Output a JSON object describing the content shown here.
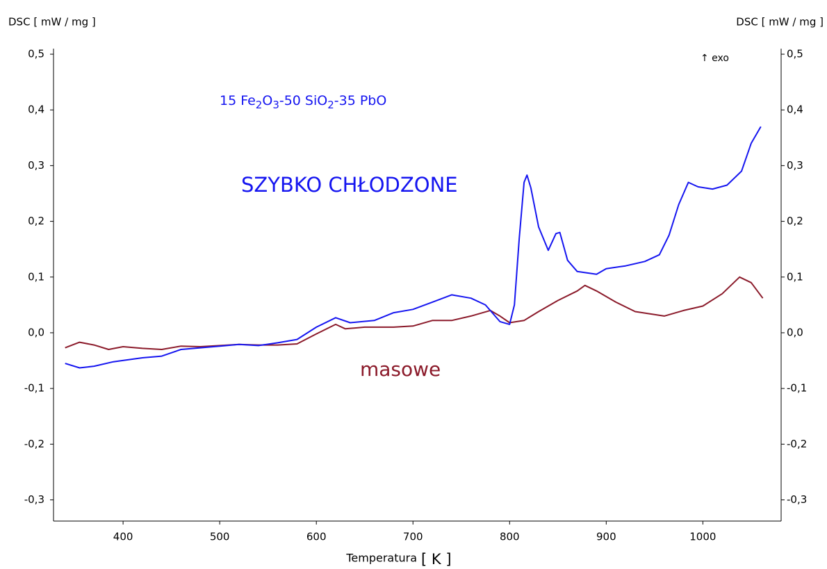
{
  "chart_data": {
    "type": "line",
    "ylabel": "DSC [ mW / mg ]",
    "y2label": "DSC [ mW / mg ]",
    "annotation": "↑ exo",
    "formula": [
      "15 Fe",
      "2",
      "O",
      "3",
      "-50 SiO",
      "2",
      "-35 PbO"
    ],
    "xlabel": [
      "Temperatura",
      "[ K ]"
    ],
    "xlim": [
      328,
      1081
    ],
    "xticks": [
      400,
      500,
      600,
      700,
      800,
      900,
      1000
    ],
    "ylim": [
      -0.338,
      0.51
    ],
    "yticks": [
      {
        "value": 0.5,
        "label": "0,5"
      },
      {
        "value": 0.4,
        "label": "0,4"
      },
      {
        "value": 0.3,
        "label": "0,3"
      },
      {
        "value": 0.2,
        "label": "0,2"
      },
      {
        "value": 0.1,
        "label": "0,1"
      },
      {
        "value": 0,
        "label": "0,0"
      },
      {
        "value": -0.1,
        "label": "-0,1"
      },
      {
        "value": -0.2,
        "label": "-0,2"
      },
      {
        "value": -0.3,
        "label": "-0,3"
      }
    ],
    "y2lim": [
      -0.338,
      0.51
    ],
    "y2ticks": [
      {
        "value": 0.5,
        "label": "0,5"
      },
      {
        "value": 0.4,
        "label": "0,4"
      },
      {
        "value": 0.3,
        "label": "0,3"
      },
      {
        "value": 0.2,
        "label": "0,2"
      },
      {
        "value": 0.1,
        "label": "0,1"
      },
      {
        "value": 0,
        "label": "0,0"
      },
      {
        "value": -0.1,
        "label": "-0,1"
      },
      {
        "value": -0.2,
        "label": "-0,2"
      },
      {
        "value": -0.3,
        "label": "-0,3"
      }
    ],
    "series": [
      {
        "name": "SZYBKO CHŁODZONE",
        "color": "#1515f0",
        "x": [
          340,
          355,
          370,
          390,
          420,
          440,
          460,
          480,
          500,
          520,
          540,
          560,
          580,
          600,
          620,
          635,
          660,
          680,
          700,
          720,
          740,
          760,
          775,
          790,
          800,
          805,
          810,
          815,
          818,
          822,
          830,
          840,
          848,
          852,
          860,
          870,
          890,
          900,
          920,
          940,
          955,
          965,
          975,
          985,
          995,
          1010,
          1025,
          1040,
          1050,
          1060
        ],
        "values": [
          -0.055,
          -0.063,
          -0.06,
          -0.052,
          -0.045,
          -0.042,
          -0.03,
          -0.027,
          -0.024,
          -0.021,
          -0.023,
          -0.018,
          -0.012,
          0.01,
          0.027,
          0.018,
          0.022,
          0.036,
          0.042,
          0.055,
          0.068,
          0.062,
          0.05,
          0.02,
          0.015,
          0.05,
          0.17,
          0.27,
          0.283,
          0.26,
          0.19,
          0.148,
          0.178,
          0.18,
          0.13,
          0.11,
          0.105,
          0.115,
          0.12,
          0.128,
          0.14,
          0.175,
          0.23,
          0.27,
          0.262,
          0.258,
          0.265,
          0.29,
          0.34,
          0.37
        ]
      },
      {
        "name": "masowe",
        "color": "#8b1a2a",
        "x": [
          340,
          355,
          370,
          385,
          400,
          420,
          440,
          460,
          480,
          500,
          520,
          540,
          560,
          580,
          600,
          620,
          630,
          650,
          680,
          700,
          720,
          740,
          760,
          780,
          790,
          800,
          815,
          830,
          850,
          870,
          878,
          890,
          910,
          930,
          960,
          980,
          1000,
          1020,
          1038,
          1050,
          1062
        ],
        "values": [
          -0.027,
          -0.017,
          -0.022,
          -0.03,
          -0.025,
          -0.028,
          -0.03,
          -0.024,
          -0.025,
          -0.023,
          -0.021,
          -0.022,
          -0.022,
          -0.02,
          -0.002,
          0.015,
          0.007,
          0.01,
          0.01,
          0.012,
          0.022,
          0.022,
          0.03,
          0.04,
          0.03,
          0.018,
          0.022,
          0.038,
          0.058,
          0.075,
          0.085,
          0.075,
          0.055,
          0.038,
          0.03,
          0.04,
          0.048,
          0.07,
          0.1,
          0.09,
          0.062
        ]
      }
    ]
  }
}
